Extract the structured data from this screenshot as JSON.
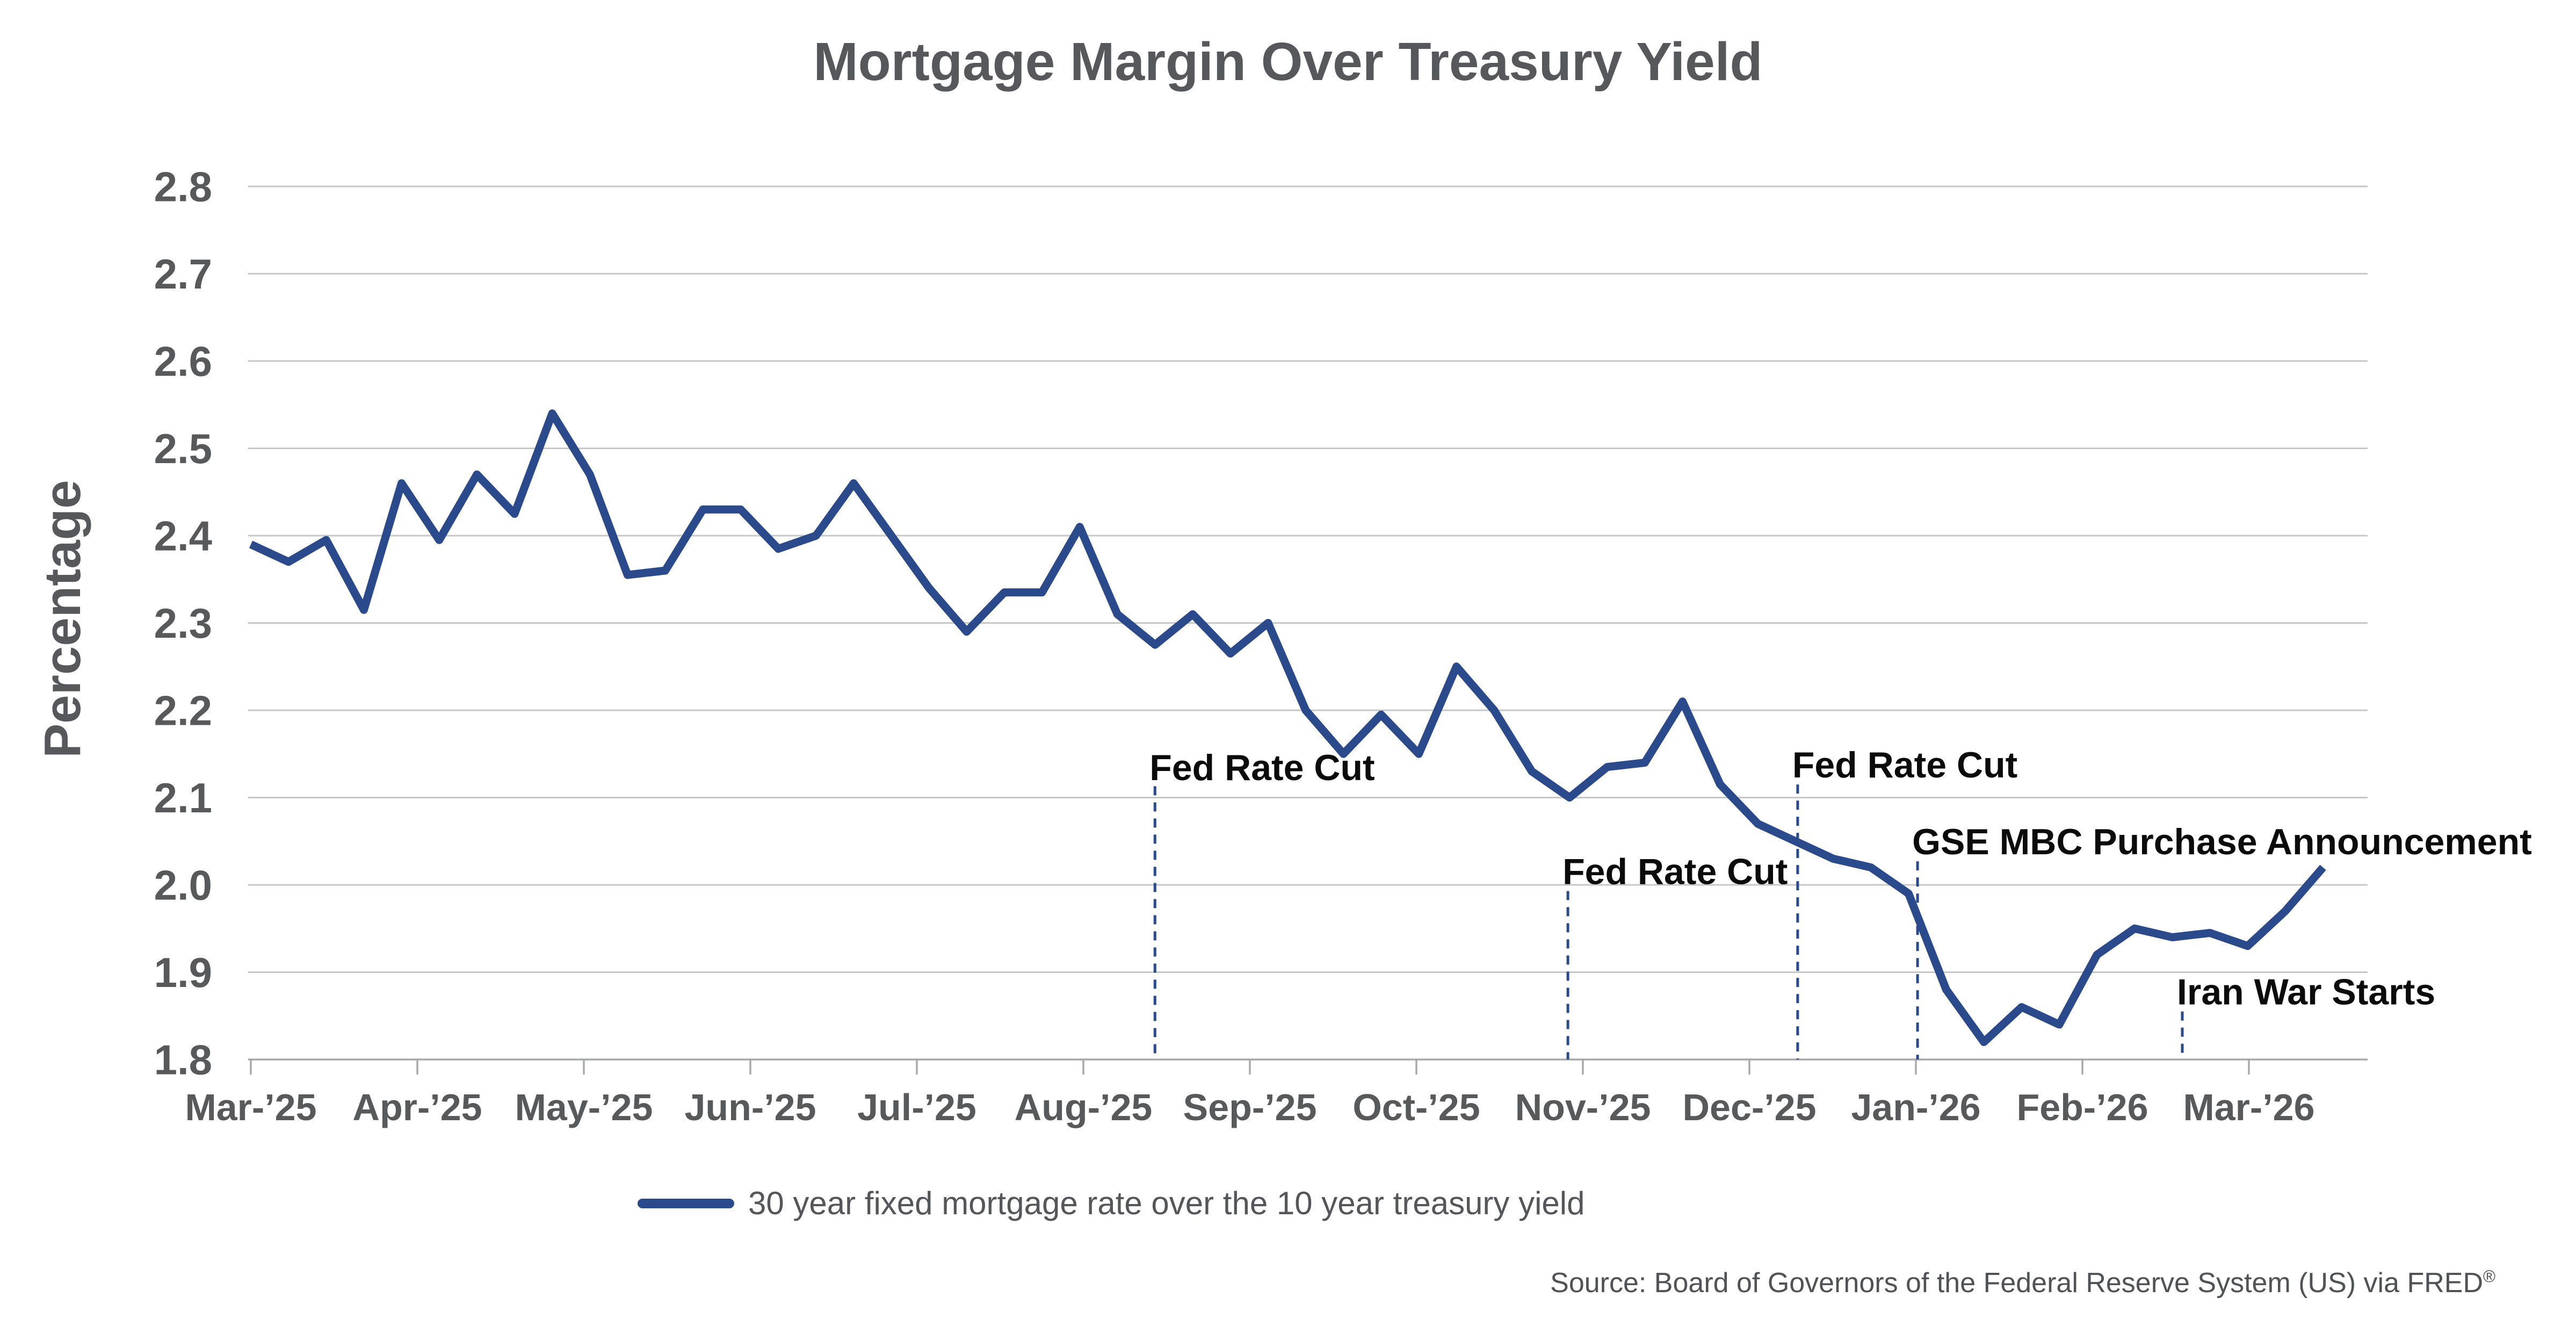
{
  "title": "Mortgage Margin Over Treasury Yield",
  "y_axis_title": "Percentage",
  "legend": {
    "label": "30 year fixed mortgage rate over the 10 year treasury yield",
    "swatch_color": "#2B4A8C"
  },
  "source": {
    "prefix": "Source: Board of Governors of the Federal Reserve System (US) via FRED",
    "registered_mark": "®"
  },
  "colors": {
    "line": "#2B4A8C",
    "gridline": "#C6C7C9",
    "axis": "#A7A9AC",
    "tick_label": "#58595B",
    "title": "#57585B",
    "annotation_text": "#0B0B0C",
    "annotation_line": "#2B4A8C",
    "legend_text": "#55565A",
    "source_text": "#515256"
  },
  "chart_data": {
    "type": "line",
    "title": "Mortgage Margin Over Treasury Yield",
    "xlabel": "",
    "ylabel": "Percentage",
    "ylim": [
      1.8,
      2.8
    ],
    "y_tick_step": 0.1,
    "y_tick_labels": [
      "2.8",
      "2.7",
      "2.6",
      "2.5",
      "2.4",
      "2.3",
      "2.2",
      "2.1",
      "2.0",
      "1.9",
      "1.8"
    ],
    "x_tick_labels": [
      "Mar-’25",
      "Apr-’25",
      "May-’25",
      "Jun-’25",
      "Jul-’25",
      "Aug-’25",
      "Sep-’25",
      "Oct-’25",
      "Nov-’25",
      "Dec-’25",
      "Jan-’26",
      "Feb-’26",
      "Mar-’26"
    ],
    "grid": "horizontal",
    "legend_position": "bottom-center",
    "frequency": "weekly",
    "series": [
      {
        "name": "30 year fixed mortgage rate over the 10 year treasury yield",
        "color": "#2B4A8C",
        "x_start_month": 0,
        "x_end_month": 12.445,
        "values": [
          2.39,
          2.37,
          2.395,
          2.315,
          2.46,
          2.395,
          2.47,
          2.425,
          2.54,
          2.47,
          2.355,
          2.36,
          2.43,
          2.43,
          2.385,
          2.4,
          2.46,
          2.4,
          2.34,
          2.29,
          2.335,
          2.335,
          2.41,
          2.31,
          2.275,
          2.31,
          2.265,
          2.3,
          2.2,
          2.15,
          2.195,
          2.15,
          2.25,
          2.2,
          2.13,
          2.1,
          2.135,
          2.14,
          2.21,
          2.115,
          2.07,
          2.05,
          2.03,
          2.02,
          1.99,
          1.88,
          1.82,
          1.86,
          1.84,
          1.92,
          1.95,
          1.94,
          1.945,
          1.93,
          1.97,
          2.02
        ]
      }
    ],
    "annotations": [
      {
        "label": "Fed Rate Cut",
        "x_month": 5.43,
        "text_v": 2.12,
        "line_top_v": 2.113,
        "line_bottom_v": 1.8
      },
      {
        "label": "Fed Rate Cut",
        "x_month": 7.91,
        "text_v": 2.001,
        "line_top_v": 1.993,
        "line_bottom_v": 1.8
      },
      {
        "label": "Fed Rate Cut",
        "x_month": 9.29,
        "text_v": 2.123,
        "line_top_v": 2.115,
        "line_bottom_v": 1.8
      },
      {
        "label": "GSE MBC Purchase Announcement",
        "x_month": 10.01,
        "text_v": 2.035,
        "line_top_v": 2.027,
        "line_bottom_v": 1.8
      },
      {
        "label": "Iran War Starts",
        "x_month": 11.6,
        "text_v": 1.863,
        "line_top_v": 1.855,
        "line_bottom_v": 1.8
      }
    ]
  }
}
